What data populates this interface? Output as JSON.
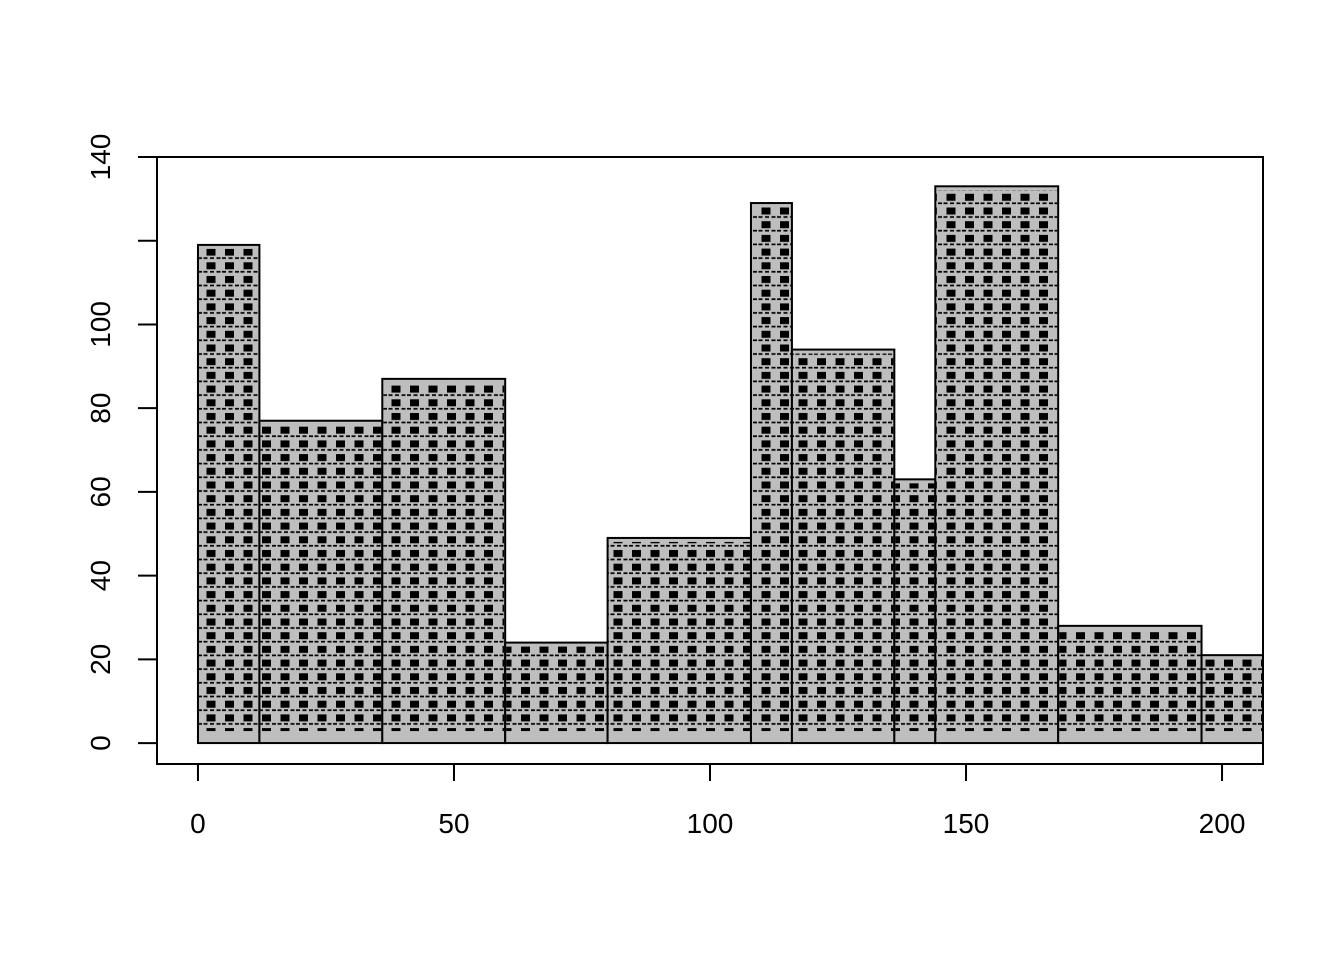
{
  "chart_data": {
    "type": "bar",
    "variant": "histogram",
    "title": "",
    "xlabel": "",
    "ylabel": "",
    "bins": [
      {
        "x_start": 0,
        "x_end": 12,
        "value": 119
      },
      {
        "x_start": 12,
        "x_end": 36,
        "value": 77
      },
      {
        "x_start": 36,
        "x_end": 60,
        "value": 87
      },
      {
        "x_start": 60,
        "x_end": 80,
        "value": 24
      },
      {
        "x_start": 80,
        "x_end": 108,
        "value": 49
      },
      {
        "x_start": 108,
        "x_end": 116,
        "value": 129
      },
      {
        "x_start": 116,
        "x_end": 136,
        "value": 94
      },
      {
        "x_start": 136,
        "x_end": 144,
        "value": 63
      },
      {
        "x_start": 144,
        "x_end": 168,
        "value": 133
      },
      {
        "x_start": 168,
        "x_end": 196,
        "value": 28
      },
      {
        "x_start": 196,
        "x_end": 216,
        "value": 21
      }
    ],
    "xlim": [
      -8,
      208
    ],
    "ylim": [
      -5,
      140
    ],
    "x_ticks": [
      0,
      50,
      100,
      150,
      200
    ],
    "x_tick_labels": [
      "0",
      "50",
      "100",
      "150",
      "200"
    ],
    "y_ticks": [
      0,
      20,
      40,
      60,
      80,
      100,
      120,
      140
    ],
    "y_tick_labels": [
      "0",
      "20",
      "40",
      "60",
      "80",
      "100",
      "",
      "140"
    ],
    "grid": false,
    "legend": "none",
    "colors": {
      "bar_fill": "#bebebe",
      "hatch": "#000000",
      "axis": "#000000",
      "background": "#ffffff"
    }
  }
}
